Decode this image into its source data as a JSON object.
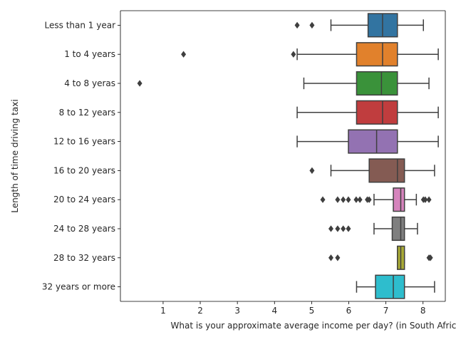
{
  "chart_data": {
    "type": "boxplot",
    "orientation": "horizontal",
    "xlabel": "What is your approximate average income per day? (in South African Rand)",
    "ylabel": "Length of time driving taxi",
    "xlim": [
      -0.15,
      8.6
    ],
    "xticks": [
      1,
      2,
      3,
      4,
      5,
      6,
      7,
      8
    ],
    "categories": [
      "Less than 1 year",
      "1 to 4 years",
      "4 to 8 yeras",
      "8 to 12 years",
      "12 to 16 years",
      "16 to 20 years",
      "20 to 24 years",
      "24 to 28 years",
      "28 to 32 years",
      "32 years or more"
    ],
    "boxes": [
      {
        "whislo": 5.52,
        "q1": 6.52,
        "med": 6.91,
        "q3": 7.31,
        "whishi": 8.01,
        "fliers": [
          4.61,
          5.01
        ]
      },
      {
        "whislo": 4.61,
        "q1": 6.21,
        "med": 6.91,
        "q3": 7.31,
        "whishi": 8.41,
        "fliers": [
          1.55,
          4.51
        ]
      },
      {
        "whislo": 4.79,
        "q1": 6.21,
        "med": 6.88,
        "q3": 7.31,
        "whishi": 8.16,
        "fliers": [
          0.37
        ]
      },
      {
        "whislo": 4.61,
        "q1": 6.21,
        "med": 6.91,
        "q3": 7.31,
        "whishi": 8.41,
        "fliers": []
      },
      {
        "whislo": 4.61,
        "q1": 5.99,
        "med": 6.75,
        "q3": 7.31,
        "whishi": 8.41,
        "fliers": []
      },
      {
        "whislo": 5.52,
        "q1": 6.55,
        "med": 7.31,
        "q3": 7.5,
        "whishi": 8.31,
        "fliers": [
          5.01
        ]
      },
      {
        "whislo": 6.68,
        "q1": 7.2,
        "med": 7.4,
        "q3": 7.5,
        "whishi": 7.82,
        "fliers": [
          5.3,
          5.7,
          5.85,
          5.99,
          6.2,
          6.3,
          6.5,
          6.55,
          8.01,
          8.06,
          8.16
        ]
      },
      {
        "whislo": 6.68,
        "q1": 7.17,
        "med": 7.4,
        "q3": 7.5,
        "whishi": 7.85,
        "fliers": [
          5.52,
          5.7,
          5.85,
          5.99
        ]
      },
      {
        "whislo": 7.31,
        "q1": 7.31,
        "med": 7.4,
        "q3": 7.5,
        "whishi": 7.5,
        "fliers": [
          5.52,
          5.7,
          8.16,
          8.2
        ]
      },
      {
        "whislo": 6.21,
        "q1": 6.72,
        "med": 7.2,
        "q3": 7.5,
        "whishi": 8.31,
        "fliers": []
      }
    ],
    "colors": [
      "#3274a1",
      "#e1812c",
      "#3a923a",
      "#c03d3e",
      "#9372b2",
      "#845b53",
      "#d684bd",
      "#7f7f7f",
      "#a9aa35",
      "#2ebdcd"
    ],
    "line_color": "#3f3f3f",
    "grid": false,
    "legend": "none"
  }
}
